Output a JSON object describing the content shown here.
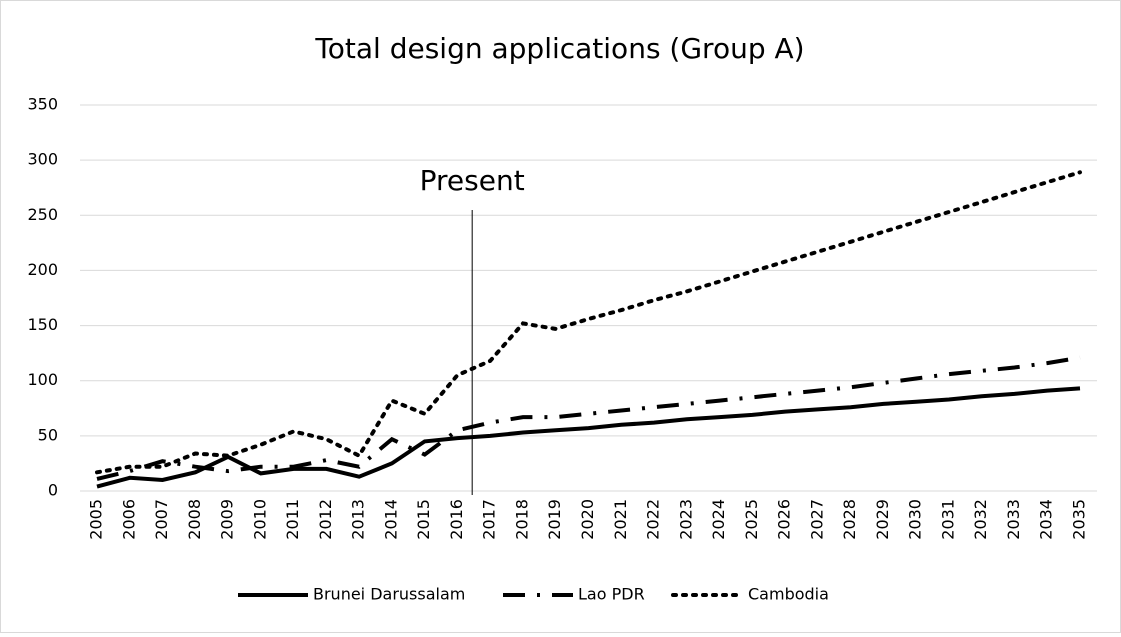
{
  "chart_data": {
    "type": "line",
    "title": "Total design applications (Group A)",
    "categories": [
      "2005",
      "2006",
      "2007",
      "2008",
      "2009",
      "2010",
      "2011",
      "2012",
      "2013",
      "2014",
      "2015",
      "2016",
      "2017",
      "2018",
      "2019",
      "2020",
      "2021",
      "2022",
      "2023",
      "2024",
      "2025",
      "2026",
      "2027",
      "2028",
      "2029",
      "2030",
      "2031",
      "2032",
      "2033",
      "2034",
      "2035"
    ],
    "series": [
      {
        "name": "Brunei Darussalam",
        "color": "#000000",
        "dash": "solid",
        "values": [
          4,
          12,
          10,
          17,
          31,
          16,
          20,
          20,
          13,
          25,
          45,
          48,
          50,
          53,
          55,
          57,
          60,
          62,
          65,
          67,
          69,
          72,
          74,
          76,
          79,
          81,
          83,
          86,
          88,
          91,
          93
        ]
      },
      {
        "name": "Lao PDR",
        "color": "#000000",
        "dash": "dash-dot",
        "values": [
          11,
          18,
          27,
          22,
          18,
          22,
          22,
          28,
          22,
          47,
          33,
          55,
          62,
          67,
          67,
          70,
          73,
          76,
          79,
          82,
          85,
          88,
          91,
          94,
          98,
          102,
          106,
          109,
          112,
          116,
          121
        ]
      },
      {
        "name": "Cambodia",
        "color": "#000000",
        "dash": "dot",
        "values": [
          17,
          22,
          22,
          34,
          32,
          42,
          54,
          47,
          32,
          82,
          70,
          105,
          118,
          152,
          147,
          156,
          164,
          173,
          181,
          190,
          199,
          208,
          217,
          226,
          235,
          244,
          253,
          262,
          271,
          280,
          289
        ]
      }
    ],
    "ylim": [
      0,
      350
    ],
    "yticks": [
      0,
      50,
      100,
      150,
      200,
      250,
      300,
      350
    ],
    "grid": true,
    "annotations": [
      {
        "text": "Present",
        "after": "2016"
      }
    ],
    "legend": "bottom"
  }
}
